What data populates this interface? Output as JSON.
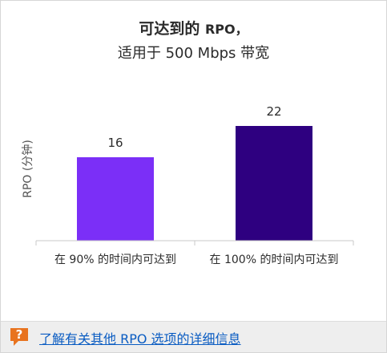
{
  "chart_data": {
    "type": "bar",
    "title_line1": "可达到的",
    "title_line1_suffix": "RPO，",
    "title_line2": "适用于 500 Mbps 带宽",
    "ylabel": "RPO (分钟)",
    "xlabel": "",
    "categories": [
      "在 90% 的时间内可达到",
      "在 100% 的时间内可达到"
    ],
    "values": [
      16,
      22
    ],
    "data_labels": [
      "16",
      "22"
    ],
    "ylim": [
      0,
      30
    ],
    "grid": false,
    "legend": "none",
    "colors": [
      "#7b2ff7",
      "#2e0080"
    ]
  },
  "footer": {
    "link_label": "了解有关其他 RPO 选项的详细信息",
    "icon": "question-icon",
    "icon_color": "#e8731f"
  },
  "colors": {
    "axis": "#c8c8c8",
    "text": "#2b2b2b",
    "link": "#0a5cc2"
  }
}
